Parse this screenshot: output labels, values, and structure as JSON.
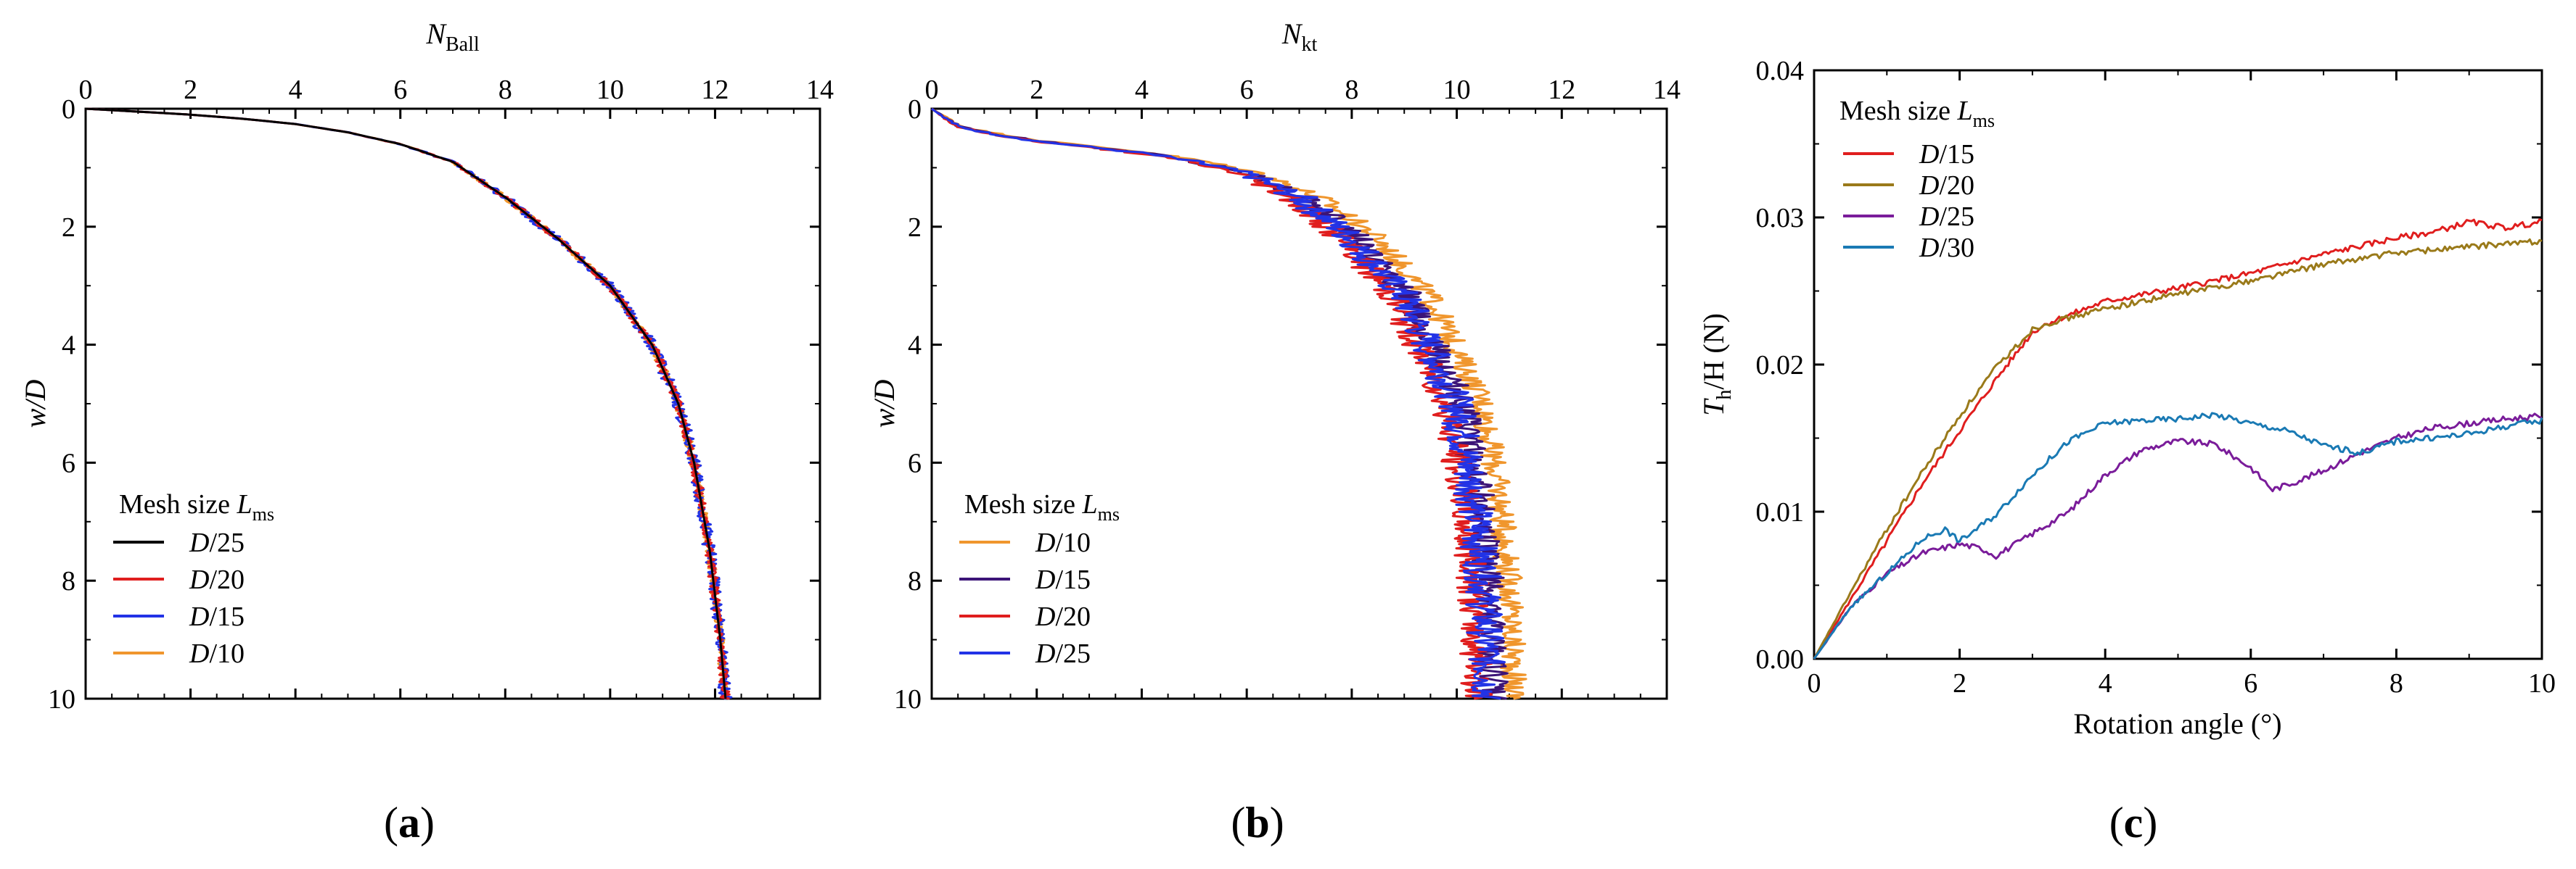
{
  "colors": {
    "black": "#000000",
    "red": "#e01e1e",
    "blue": "#2233e6",
    "orange": "#f0962d",
    "purple": "#3c1478",
    "olive": "#9a7a1a",
    "violet": "#7a1c9a",
    "teal": "#1a7ab4"
  },
  "chart_data": [
    {
      "panel": "a",
      "panel_label": "(a)",
      "type": "line",
      "xlabel": "N",
      "xlabel_sub": "Ball",
      "ylabel": "w/D",
      "xlim": [
        0,
        14
      ],
      "ylim": [
        0,
        10
      ],
      "x_ticks": [
        "0",
        "2",
        "4",
        "6",
        "8",
        "10",
        "12",
        "14"
      ],
      "y_ticks": [
        "0",
        "2",
        "4",
        "6",
        "8",
        "10"
      ],
      "legend_title": "Mesh size ",
      "legend_title_var": "L",
      "legend_title_sub": "ms",
      "legend_position": "lower-left",
      "series": [
        {
          "name": "D/25",
          "num": "D",
          "den": "/25",
          "color": "#000000",
          "noise": 0.0
        },
        {
          "name": "D/20",
          "num": "D",
          "den": "/20",
          "color": "#e01e1e",
          "noise": 0.09
        },
        {
          "name": "D/15",
          "num": "D",
          "den": "/15",
          "color": "#2233e6",
          "noise": 0.12
        },
        {
          "name": "D/10",
          "num": "D",
          "den": "/10",
          "color": "#f0962d",
          "noise": 0.08
        }
      ],
      "base_curve": {
        "x": [
          0,
          1,
          2,
          3,
          4,
          5,
          6,
          7,
          8,
          9,
          10,
          10.8,
          11.3,
          11.6,
          11.9,
          12.1,
          12.2
        ],
        "y": [
          0,
          0.05,
          0.1,
          0.17,
          0.26,
          0.4,
          0.6,
          0.9,
          1.5,
          2.2,
          3.0,
          4.0,
          5.0,
          6.0,
          7.5,
          9.0,
          10.0
        ]
      }
    },
    {
      "panel": "b",
      "panel_label": "(b)",
      "type": "line",
      "xlabel": "N",
      "xlabel_sub": "kt",
      "ylabel": "w/D",
      "xlim": [
        0,
        14
      ],
      "ylim": [
        0,
        10
      ],
      "x_ticks": [
        "0",
        "2",
        "4",
        "6",
        "8",
        "10",
        "12",
        "14"
      ],
      "y_ticks": [
        "0",
        "2",
        "4",
        "6",
        "8",
        "10"
      ],
      "legend_title": "Mesh size ",
      "legend_title_var": "L",
      "legend_title_sub": "ms",
      "legend_position": "lower-left",
      "series": [
        {
          "name": "D/10",
          "num": "D",
          "den": "/10",
          "color": "#f0962d",
          "noise": 0.25,
          "offset": 0.5
        },
        {
          "name": "D/15",
          "num": "D",
          "den": "/15",
          "color": "#3c1478",
          "noise": 0.3,
          "offset": 0.1
        },
        {
          "name": "D/20",
          "num": "D",
          "den": "/20",
          "color": "#e01e1e",
          "noise": 0.3,
          "offset": -0.2
        },
        {
          "name": "D/25",
          "num": "D",
          "den": "/25",
          "color": "#2233e6",
          "noise": 0.35,
          "offset": 0.0
        }
      ],
      "base_curve": {
        "x": [
          0,
          0.5,
          1,
          2,
          3,
          4,
          5,
          6,
          7,
          8,
          9,
          10,
          10.3,
          10.5,
          10.6
        ],
        "y": [
          0,
          0.3,
          0.4,
          0.55,
          0.65,
          0.75,
          0.9,
          1.1,
          1.5,
          2.2,
          3.2,
          5.0,
          6.5,
          8.0,
          10.0
        ]
      }
    },
    {
      "panel": "c",
      "panel_label": "(c)",
      "type": "line",
      "xlabel": "Rotation angle (°)",
      "ylabel_var": "T",
      "ylabel_sub": "h",
      "ylabel_rest": "/H (N)",
      "xlim": [
        0,
        10
      ],
      "ylim": [
        0,
        0.04
      ],
      "x_ticks": [
        "0",
        "2",
        "4",
        "6",
        "8",
        "10"
      ],
      "y_ticks": [
        "0.00",
        "0.01",
        "0.02",
        "0.03",
        "0.04"
      ],
      "legend_title": "Mesh size ",
      "legend_title_var": "L",
      "legend_title_sub": "ms",
      "legend_position": "upper-left",
      "series": [
        {
          "name": "D/15",
          "num": "D",
          "den": "/15",
          "color": "#e01e1e",
          "x": [
            0,
            0.5,
            1,
            1.5,
            2,
            2.5,
            3,
            3.2,
            4,
            5,
            6,
            7,
            8,
            8.5,
            9,
            9.5,
            10
          ],
          "y": [
            0,
            0.004,
            0.008,
            0.012,
            0.0155,
            0.019,
            0.0222,
            0.0228,
            0.0243,
            0.0252,
            0.0262,
            0.0275,
            0.0286,
            0.029,
            0.0297,
            0.0293,
            0.0297
          ]
        },
        {
          "name": "D/20",
          "num": "D",
          "den": "/20",
          "color": "#9a7a1a",
          "x": [
            0,
            0.5,
            1,
            1.5,
            2,
            2.5,
            3,
            3.2,
            4,
            5,
            6,
            7,
            8,
            9,
            10
          ],
          "y": [
            0,
            0.0045,
            0.0088,
            0.0128,
            0.0165,
            0.0198,
            0.0224,
            0.0228,
            0.0238,
            0.0248,
            0.0257,
            0.0268,
            0.0276,
            0.028,
            0.0284
          ]
        },
        {
          "name": "D/25",
          "num": "D",
          "den": "/25",
          "color": "#7a1c9a",
          "x": [
            0,
            0.5,
            1,
            1.5,
            2,
            2.3,
            2.5,
            3,
            3.5,
            4,
            4.5,
            5,
            5.5,
            6,
            6.3,
            6.6,
            7,
            7.5,
            8,
            8.5,
            9,
            9.5,
            10
          ],
          "y": [
            0,
            0.0035,
            0.0058,
            0.0072,
            0.0078,
            0.0075,
            0.007,
            0.0085,
            0.01,
            0.0125,
            0.0142,
            0.0148,
            0.0146,
            0.013,
            0.0115,
            0.012,
            0.0128,
            0.014,
            0.015,
            0.0157,
            0.016,
            0.0163,
            0.0165
          ]
        },
        {
          "name": "D/30",
          "num": "D",
          "den": "/30",
          "color": "#1a7ab4",
          "x": [
            0,
            0.5,
            1,
            1.5,
            1.8,
            2,
            2.5,
            3,
            3.5,
            4,
            4.5,
            5,
            5.5,
            6,
            6.5,
            7,
            7.5,
            8,
            8.5,
            9,
            9.5,
            10
          ],
          "y": [
            0,
            0.0035,
            0.0058,
            0.0082,
            0.0088,
            0.008,
            0.0098,
            0.0125,
            0.0148,
            0.016,
            0.0162,
            0.0163,
            0.0166,
            0.016,
            0.0155,
            0.0145,
            0.014,
            0.0148,
            0.015,
            0.0153,
            0.0158,
            0.0162
          ]
        }
      ]
    }
  ]
}
